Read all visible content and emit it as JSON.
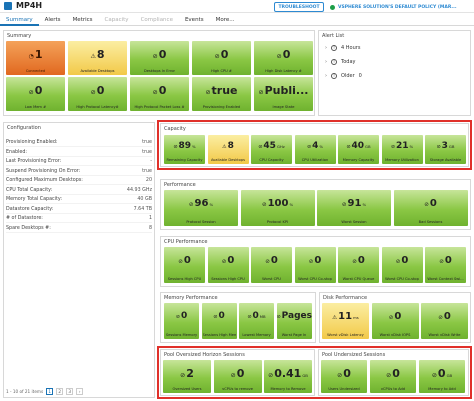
{
  "header": {
    "title": "MP4H",
    "troubleshoot_label": "TROUBLESHOOT",
    "policy_label": "VSPHERE SOLUTION'S DEFAULT POLICY (MAR..."
  },
  "tabs": [
    "Summary",
    "Alerts",
    "Metrics",
    "Capacity",
    "Compliance",
    "Events",
    "More..."
  ],
  "summary": {
    "title": "Summary",
    "tiles": [
      {
        "value": "1",
        "label": "Connected",
        "color": "orange",
        "icon": "gauge-icon"
      },
      {
        "value": "8",
        "label": "Available Desktops",
        "color": "yellow",
        "icon": "warning-icon"
      },
      {
        "value": "0",
        "label": "Desktops In Error",
        "color": "green",
        "icon": "check-icon"
      },
      {
        "value": "0",
        "label": "High CPU #",
        "color": "green",
        "icon": "check-icon"
      },
      {
        "value": "0",
        "label": "High Disk Latency #",
        "color": "green",
        "icon": "check-icon"
      },
      {
        "value": "0",
        "label": "Low Mem #",
        "color": "green",
        "icon": "check-icon"
      },
      {
        "value": "0",
        "label": "High Protocol Latency#",
        "color": "green",
        "icon": "check-icon"
      },
      {
        "value": "0",
        "label": "High Protocol Packet Loss #",
        "color": "green",
        "icon": "check-icon"
      },
      {
        "value": "true",
        "label": "Provisioning Enabled",
        "color": "green",
        "icon": "check-icon"
      },
      {
        "value": "Publi...",
        "label": "Image State",
        "color": "green",
        "icon": "check-icon"
      }
    ]
  },
  "alerts": {
    "title": "Alert List",
    "rows": [
      {
        "label": "4 Hours",
        "icon": "clock-icon"
      },
      {
        "label": "Today",
        "icon": "clock-icon"
      },
      {
        "label": "Older",
        "icon": "clock-icon",
        "count": "0"
      }
    ]
  },
  "configuration": {
    "title": "Configuration",
    "rows": [
      {
        "key": "Provisioning Enabled:",
        "value": "true"
      },
      {
        "key": "Enabled:",
        "value": "true"
      },
      {
        "key": "Last Provisioning Error:",
        "value": "-"
      },
      {
        "key": "Suspend Provisioning On Error:",
        "value": "true"
      },
      {
        "key": "Configured Maximum Desktops:",
        "value": "20"
      },
      {
        "key": "CPU Total Capacity:",
        "value": "44.93 GHz"
      },
      {
        "key": "Memory Total Capacity:",
        "value": "40 GB"
      },
      {
        "key": "Datastore Capacity:",
        "value": "7.64 TB"
      },
      {
        "key": "# of Datastore:",
        "value": "1"
      },
      {
        "key": "Spare Desktops #:",
        "value": "8"
      }
    ],
    "pager": {
      "range": "1 - 10 of 21 items",
      "pages": [
        "1",
        "2",
        "3"
      ]
    }
  },
  "capacity": {
    "title": "Capacity",
    "tiles": [
      {
        "value": "89",
        "unit": "%",
        "label": "Remaining Capacity",
        "color": "green"
      },
      {
        "value": "8",
        "unit": "",
        "label": "Available Desktops",
        "color": "yellow",
        "icon": "warning-icon"
      },
      {
        "value": "45",
        "unit": "GHz",
        "label": "CPU Capacity",
        "color": "green"
      },
      {
        "value": "4",
        "unit": "%",
        "label": "CPU Utilization",
        "color": "green"
      },
      {
        "value": "40",
        "unit": "GB",
        "label": "Memory Capacity",
        "color": "green"
      },
      {
        "value": "21",
        "unit": "%",
        "label": "Memory Utilization",
        "color": "green"
      },
      {
        "value": "3",
        "unit": "GB",
        "label": "Storage Available",
        "color": "green"
      }
    ]
  },
  "performance": {
    "title": "Performance",
    "tiles": [
      {
        "value": "96",
        "unit": "%",
        "label": "Protocol Session",
        "color": "green"
      },
      {
        "value": "100",
        "unit": "%",
        "label": "Protocol KPI",
        "color": "green"
      },
      {
        "value": "91",
        "unit": "%",
        "label": "Worst Session",
        "color": "green"
      },
      {
        "value": "0",
        "unit": "",
        "label": "Bad Sessions",
        "color": "green"
      }
    ]
  },
  "cpu_performance": {
    "title": "CPU Performance",
    "tiles": [
      {
        "value": "0",
        "label": "Sessions High CPU"
      },
      {
        "value": "0",
        "label": "Sessions High CPU"
      },
      {
        "value": "0",
        "label": "Worst CPU"
      },
      {
        "value": "0",
        "label": "Worst CPU Co-stop"
      },
      {
        "value": "0",
        "label": "Worst CPU Queue"
      },
      {
        "value": "0",
        "label": "Worst CPU Co-stop"
      },
      {
        "value": "0",
        "label": "Worst Context Swi..."
      }
    ]
  },
  "memory_performance": {
    "title": "Memory Performance",
    "tiles": [
      {
        "value": "0",
        "unit": "",
        "label": "Sessions Memory"
      },
      {
        "value": "0",
        "unit": "",
        "label": "Sessions High Mem"
      },
      {
        "value": "0",
        "unit": "MB",
        "label": "Lowest Memory"
      },
      {
        "value": "Pages/...",
        "unit": "",
        "label": "Worst Page In"
      }
    ]
  },
  "disk_performance": {
    "title": "Disk Performance",
    "tiles": [
      {
        "value": "11",
        "unit": "ms",
        "label": "Worst vDisk Latency",
        "color": "yellow",
        "icon": "warning-icon"
      },
      {
        "value": "0",
        "unit": "",
        "label": "Worst vDisk IOPS",
        "color": "green"
      },
      {
        "value": "0",
        "unit": "",
        "label": "Worst vDisk Write",
        "color": "green"
      }
    ]
  },
  "pool_oversized": {
    "title": "Pool Oversized Horizon Sessions",
    "tiles": [
      {
        "value": "2",
        "unit": "",
        "label": "Oversized Users"
      },
      {
        "value": "0",
        "unit": "",
        "label": "vCPUs to remove"
      },
      {
        "value": "0.41",
        "unit": "GB",
        "label": "Memory to Remove"
      }
    ]
  },
  "pool_undersized": {
    "title": "Pool Undersized Sessions",
    "tiles": [
      {
        "value": "0",
        "unit": "",
        "label": "Users Undersized"
      },
      {
        "value": "0",
        "unit": "",
        "label": "vCPUs to Add"
      },
      {
        "value": "0",
        "unit": "GB",
        "label": "Memory to Add"
      }
    ]
  },
  "colors": {
    "accent": "#1a73b5",
    "highlight_border": "#e0302a",
    "tile_green": "#8ac744",
    "tile_orange": "#e1681f",
    "tile_yellow": "#f2c948"
  }
}
